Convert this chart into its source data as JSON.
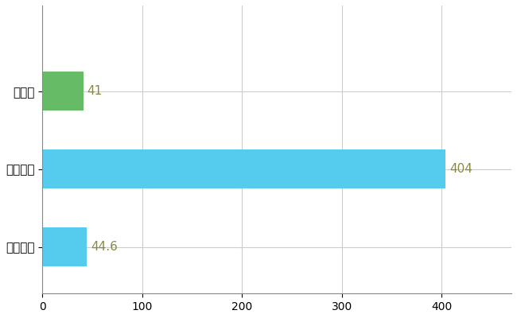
{
  "categories": [
    "全国平均",
    "全国最大",
    "長崎県"
  ],
  "values": [
    44.6,
    404,
    41
  ],
  "bar_colors": [
    "#55CCEE",
    "#55CCEE",
    "#66BB66"
  ],
  "bar_labels": [
    "44.6",
    "404",
    "41"
  ],
  "xlim": [
    0,
    470
  ],
  "xticks": [
    0,
    100,
    200,
    300,
    400
  ],
  "grid_color": "#CCCCCC",
  "background_color": "#FFFFFF",
  "bar_height": 0.5,
  "label_fontsize": 11,
  "tick_fontsize": 10
}
